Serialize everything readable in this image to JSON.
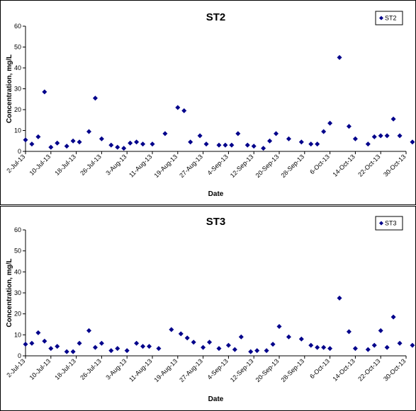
{
  "chart_data": [
    {
      "type": "scatter",
      "title": "ST2",
      "xlabel": "Date",
      "ylabel": "Concentration, mg/L",
      "ylim": [
        0,
        60
      ],
      "yticks": [
        0,
        10,
        20,
        30,
        40,
        50,
        60
      ],
      "xlim": [
        "2013-07-02",
        "2013-10-30"
      ],
      "x_tick_labels": [
        "2-Jul-13",
        "10-Jul-13",
        "18-Jul-13",
        "26-Jul-13",
        "3-Aug-13",
        "11-Aug-13",
        "19-Aug-13",
        "27-Aug-13",
        "4-Sep-13",
        "12-Sep-13",
        "20-Sep-13",
        "28-Sep-13",
        "6-Oct-13",
        "14-Oct-13",
        "22-Oct-13",
        "30-Oct-13"
      ],
      "legend": "top-right",
      "grid": false,
      "series": [
        {
          "name": "ST2",
          "color": "#00008B",
          "marker": "diamond",
          "points": [
            [
              "2013-07-02",
              5.5
            ],
            [
              "2013-07-04",
              3.5
            ],
            [
              "2013-07-06",
              7
            ],
            [
              "2013-07-08",
              28.5
            ],
            [
              "2013-07-10",
              2
            ],
            [
              "2013-07-12",
              4
            ],
            [
              "2013-07-15",
              2.5
            ],
            [
              "2013-07-17",
              5
            ],
            [
              "2013-07-19",
              4.5
            ],
            [
              "2013-07-22",
              9.5
            ],
            [
              "2013-07-24",
              25.5
            ],
            [
              "2013-07-26",
              6
            ],
            [
              "2013-07-29",
              3
            ],
            [
              "2013-07-31",
              2
            ],
            [
              "2013-08-02",
              1.5
            ],
            [
              "2013-08-04",
              4
            ],
            [
              "2013-08-06",
              4.5
            ],
            [
              "2013-08-08",
              3.5
            ],
            [
              "2013-08-11",
              3.5
            ],
            [
              "2013-08-15",
              8.5
            ],
            [
              "2013-08-19",
              21
            ],
            [
              "2013-08-21",
              19.5
            ],
            [
              "2013-08-23",
              4.5
            ],
            [
              "2013-08-26",
              7.5
            ],
            [
              "2013-08-28",
              3.5
            ],
            [
              "2013-09-01",
              3
            ],
            [
              "2013-09-03",
              3
            ],
            [
              "2013-09-05",
              3
            ],
            [
              "2013-09-07",
              8.5
            ],
            [
              "2013-09-10",
              3
            ],
            [
              "2013-09-12",
              2.5
            ],
            [
              "2013-09-15",
              1.5
            ],
            [
              "2013-09-17",
              5
            ],
            [
              "2013-09-19",
              8.5
            ],
            [
              "2013-09-23",
              6
            ],
            [
              "2013-09-27",
              4.5
            ],
            [
              "2013-09-30",
              3.5
            ],
            [
              "2013-10-02",
              3.5
            ],
            [
              "2013-10-04",
              9.5
            ],
            [
              "2013-10-06",
              13.5
            ],
            [
              "2013-10-09",
              45
            ],
            [
              "2013-10-12",
              12
            ],
            [
              "2013-10-14",
              6
            ],
            [
              "2013-10-18",
              3.5
            ],
            [
              "2013-10-20",
              7
            ],
            [
              "2013-10-22",
              7.5
            ],
            [
              "2013-10-24",
              7.5
            ],
            [
              "2013-10-26",
              15.5
            ],
            [
              "2013-10-28",
              7.5
            ],
            [
              "2013-11-01",
              4.5
            ],
            [
              "2013-11-03",
              5
            ]
          ]
        }
      ]
    },
    {
      "type": "scatter",
      "title": "ST3",
      "xlabel": "Date",
      "ylabel": "Concentration, mg/L",
      "ylim": [
        0,
        60
      ],
      "yticks": [
        0,
        10,
        20,
        30,
        40,
        50,
        60
      ],
      "xlim": [
        "2013-07-02",
        "2013-10-30"
      ],
      "x_tick_labels": [
        "2-Jul-13",
        "10-Jul-13",
        "18-Jul-13",
        "26-Jul-13",
        "3-Aug-13",
        "11-Aug-13",
        "19-Aug-13",
        "27-Aug-13",
        "4-Sep-13",
        "12-Sep-13",
        "20-Sep-13",
        "28-Sep-13",
        "6-Oct-13",
        "14-Oct-13",
        "22-Oct-13",
        "30-Oct-13"
      ],
      "legend": "top-right",
      "grid": false,
      "series": [
        {
          "name": "ST3",
          "color": "#00008B",
          "marker": "diamond",
          "points": [
            [
              "2013-07-02",
              5.5
            ],
            [
              "2013-07-04",
              6
            ],
            [
              "2013-07-06",
              11
            ],
            [
              "2013-07-08",
              7
            ],
            [
              "2013-07-10",
              3.5
            ],
            [
              "2013-07-12",
              4.5
            ],
            [
              "2013-07-15",
              2
            ],
            [
              "2013-07-17",
              2
            ],
            [
              "2013-07-19",
              6
            ],
            [
              "2013-07-22",
              12
            ],
            [
              "2013-07-24",
              4
            ],
            [
              "2013-07-26",
              6
            ],
            [
              "2013-07-29",
              2.5
            ],
            [
              "2013-07-31",
              3.5
            ],
            [
              "2013-08-03",
              2.5
            ],
            [
              "2013-08-06",
              6
            ],
            [
              "2013-08-08",
              4.5
            ],
            [
              "2013-08-10",
              4.5
            ],
            [
              "2013-08-13",
              3.5
            ],
            [
              "2013-08-17",
              12.5
            ],
            [
              "2013-08-20",
              10.5
            ],
            [
              "2013-08-22",
              8.5
            ],
            [
              "2013-08-24",
              6.5
            ],
            [
              "2013-08-27",
              4
            ],
            [
              "2013-08-29",
              6.5
            ],
            [
              "2013-09-01",
              3.5
            ],
            [
              "2013-09-04",
              5
            ],
            [
              "2013-09-06",
              3
            ],
            [
              "2013-09-08",
              9
            ],
            [
              "2013-09-11",
              2
            ],
            [
              "2013-09-13",
              2.5
            ],
            [
              "2013-09-16",
              2.5
            ],
            [
              "2013-09-18",
              5.5
            ],
            [
              "2013-09-20",
              14
            ],
            [
              "2013-09-23",
              9
            ],
            [
              "2013-09-27",
              8
            ],
            [
              "2013-09-30",
              5
            ],
            [
              "2013-10-02",
              4
            ],
            [
              "2013-10-04",
              4
            ],
            [
              "2013-10-06",
              3.5
            ],
            [
              "2013-10-09",
              27.5
            ],
            [
              "2013-10-12",
              11.5
            ],
            [
              "2013-10-14",
              3.5
            ],
            [
              "2013-10-18",
              3
            ],
            [
              "2013-10-20",
              5
            ],
            [
              "2013-10-22",
              12
            ],
            [
              "2013-10-24",
              4
            ],
            [
              "2013-10-26",
              18.5
            ],
            [
              "2013-10-28",
              6
            ],
            [
              "2013-11-01",
              5
            ],
            [
              "2013-11-03",
              2.5
            ]
          ]
        }
      ]
    }
  ]
}
